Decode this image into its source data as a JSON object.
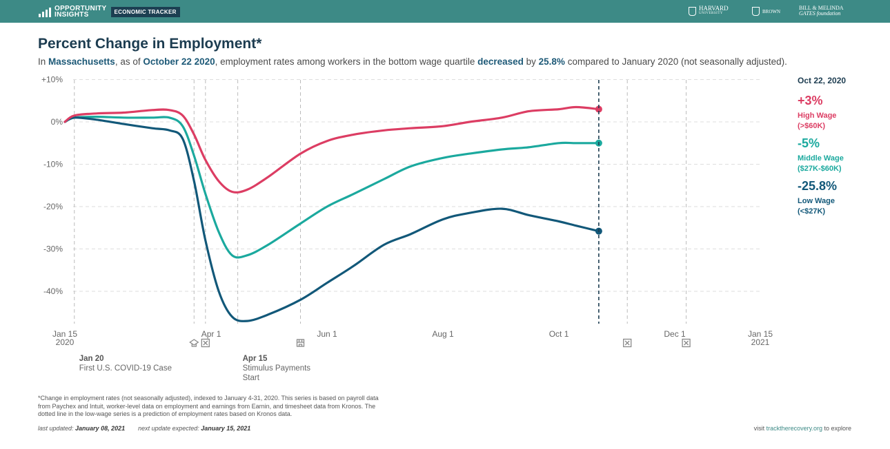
{
  "header": {
    "logo_line1": "OPPORTUNITY",
    "logo_line2": "INSIGHTS",
    "tracker_label": "ECONOMIC TRACKER",
    "partners": {
      "harvard": "HARVARD",
      "harvard_sub": "UNIVERSITY",
      "brown": "BROWN",
      "gates_line1": "BILL & MELINDA",
      "gates_line2": "GATES foundation"
    },
    "colors": {
      "bar": "#3d8a86",
      "badge": "#1c3f52"
    }
  },
  "title": "Percent Change in Employment*",
  "subtitle": {
    "p1": "In ",
    "state": "Massachusetts",
    "p2": ", as of ",
    "date": "October 22 2020",
    "p3": ", employment rates among workers in the bottom wage quartile ",
    "direction": "decreased",
    "p4": " by ",
    "amount": "25.8%",
    "p5": " compared to January 2020 (not seasonally adjusted)."
  },
  "chart_data": {
    "type": "line",
    "ylim": [
      -47,
      10
    ],
    "yticks": [
      10,
      0,
      -10,
      -20,
      -30,
      -40
    ],
    "ytick_labels": [
      "+10%",
      "0%",
      "-10%",
      "-20%",
      "-30%",
      "-40%"
    ],
    "xlim": [
      "2020-01-15",
      "2021-01-15"
    ],
    "xticks": [
      {
        "date": "2020-01-15",
        "l1": "Jan 15",
        "l2": "2020"
      },
      {
        "date": "2020-04-01",
        "l1": "Apr 1",
        "l2": ""
      },
      {
        "date": "2020-06-01",
        "l1": "Jun 1",
        "l2": ""
      },
      {
        "date": "2020-08-01",
        "l1": "Aug 1",
        "l2": ""
      },
      {
        "date": "2020-10-01",
        "l1": "Oct 1",
        "l2": ""
      },
      {
        "date": "2020-12-01",
        "l1": "Dec 1",
        "l2": ""
      },
      {
        "date": "2021-01-15",
        "l1": "Jan 15",
        "l2": "2021"
      }
    ],
    "event_lines": [
      "2020-01-20",
      "2020-03-23",
      "2020-03-29",
      "2020-04-15",
      "2020-05-18",
      "2020-11-06",
      "2020-12-07"
    ],
    "event_icons": [
      {
        "date": "2020-03-23",
        "icon": "school-closure-icon"
      },
      {
        "date": "2020-03-29",
        "icon": "business-closure-icon"
      },
      {
        "date": "2020-05-18",
        "icon": "store-reopening-icon"
      },
      {
        "date": "2020-11-06",
        "icon": "business-closure-icon"
      },
      {
        "date": "2020-12-07",
        "icon": "business-closure-icon"
      }
    ],
    "annotations": [
      {
        "date": "2020-01-20",
        "bold": "Jan 20",
        "text": [
          "First U.S. COVID-19 Case"
        ]
      },
      {
        "date": "2020-04-15",
        "bold": "Apr 15",
        "text": [
          "Stimulus Payments",
          "Start"
        ]
      }
    ],
    "current_date": "2020-10-22",
    "current_label": "Oct 22, 2020",
    "series": [
      {
        "name": "High Wage",
        "range": "(>$60K)",
        "final_label": "+3%",
        "color": "#dc3d63",
        "points": [
          [
            "2020-01-15",
            0
          ],
          [
            "2020-01-20",
            1.5
          ],
          [
            "2020-02-01",
            2
          ],
          [
            "2020-02-15",
            2.2
          ],
          [
            "2020-03-01",
            2.8
          ],
          [
            "2020-03-10",
            2.8
          ],
          [
            "2020-03-17",
            1.5
          ],
          [
            "2020-03-23",
            -3
          ],
          [
            "2020-03-29",
            -9
          ],
          [
            "2020-04-05",
            -14
          ],
          [
            "2020-04-12",
            -16.5
          ],
          [
            "2020-04-20",
            -16
          ],
          [
            "2020-05-01",
            -13
          ],
          [
            "2020-05-18",
            -7.5
          ],
          [
            "2020-06-01",
            -4.5
          ],
          [
            "2020-06-15",
            -3
          ],
          [
            "2020-07-01",
            -2
          ],
          [
            "2020-07-15",
            -1.5
          ],
          [
            "2020-08-01",
            -1
          ],
          [
            "2020-08-15",
            0
          ],
          [
            "2020-09-01",
            1
          ],
          [
            "2020-09-15",
            2.5
          ],
          [
            "2020-10-01",
            3
          ],
          [
            "2020-10-10",
            3.5
          ],
          [
            "2020-10-22",
            3
          ]
        ]
      },
      {
        "name": "Middle Wage",
        "range": "($27K-$60K)",
        "final_label": "-5%",
        "color": "#1ba99e",
        "points": [
          [
            "2020-01-15",
            0
          ],
          [
            "2020-01-20",
            1
          ],
          [
            "2020-02-01",
            1.2
          ],
          [
            "2020-02-15",
            1
          ],
          [
            "2020-03-01",
            1
          ],
          [
            "2020-03-10",
            1
          ],
          [
            "2020-03-17",
            -1
          ],
          [
            "2020-03-23",
            -8
          ],
          [
            "2020-03-29",
            -17
          ],
          [
            "2020-04-05",
            -26
          ],
          [
            "2020-04-12",
            -31.5
          ],
          [
            "2020-04-20",
            -31.5
          ],
          [
            "2020-05-01",
            -29
          ],
          [
            "2020-05-18",
            -24
          ],
          [
            "2020-06-01",
            -20
          ],
          [
            "2020-06-15",
            -17
          ],
          [
            "2020-07-01",
            -13.5
          ],
          [
            "2020-07-15",
            -10.5
          ],
          [
            "2020-08-01",
            -8.5
          ],
          [
            "2020-08-15",
            -7.5
          ],
          [
            "2020-09-01",
            -6.5
          ],
          [
            "2020-09-15",
            -6
          ],
          [
            "2020-10-01",
            -5
          ],
          [
            "2020-10-10",
            -5
          ],
          [
            "2020-10-22",
            -5
          ]
        ]
      },
      {
        "name": "Low Wage",
        "range": "(<$27K)",
        "final_label": "-25.8%",
        "color": "#125879",
        "points": [
          [
            "2020-01-15",
            0
          ],
          [
            "2020-01-20",
            1
          ],
          [
            "2020-02-01",
            0.5
          ],
          [
            "2020-02-15",
            -0.5
          ],
          [
            "2020-03-01",
            -1.5
          ],
          [
            "2020-03-10",
            -2
          ],
          [
            "2020-03-17",
            -4
          ],
          [
            "2020-03-23",
            -14
          ],
          [
            "2020-03-29",
            -28
          ],
          [
            "2020-04-05",
            -40
          ],
          [
            "2020-04-12",
            -46
          ],
          [
            "2020-04-20",
            -47
          ],
          [
            "2020-05-01",
            -45.5
          ],
          [
            "2020-05-18",
            -42
          ],
          [
            "2020-06-01",
            -38
          ],
          [
            "2020-06-15",
            -34
          ],
          [
            "2020-07-01",
            -29
          ],
          [
            "2020-07-15",
            -26.5
          ],
          [
            "2020-08-01",
            -23
          ],
          [
            "2020-08-15",
            -21.5
          ],
          [
            "2020-09-01",
            -20.5
          ],
          [
            "2020-09-15",
            -22
          ],
          [
            "2020-10-01",
            -23.5
          ],
          [
            "2020-10-10",
            -24.5
          ],
          [
            "2020-10-22",
            -25.8
          ]
        ]
      }
    ]
  },
  "footnote": "*Change in employment rates (not seasonally adjusted), indexed to January 4-31, 2020. This series is based on payroll data from Paychex and Intuit, worker-level data on employment and earnings from Earnin, and timesheet data from Kronos. The dotted line in the low-wage series is a prediction of employment rates based on Kronos data.",
  "updated": {
    "last_label": "last updated: ",
    "last_date": "January 08, 2021",
    "next_label": "next update expected: ",
    "next_date": "January 15, 2021"
  },
  "visit": {
    "pre": "visit ",
    "link": "tracktherecovery.org",
    "post": " to explore"
  }
}
